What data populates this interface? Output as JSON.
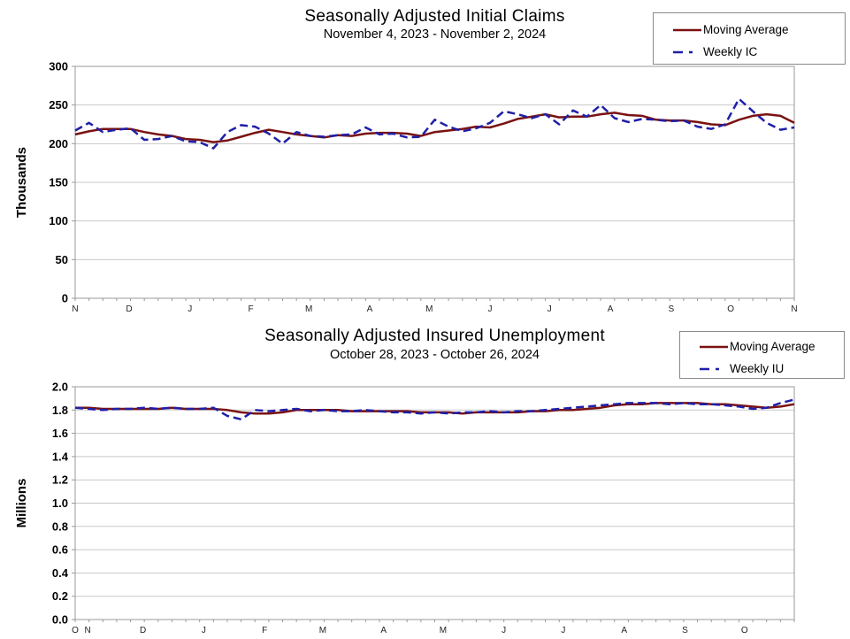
{
  "chart_data": [
    {
      "type": "line",
      "title": "Seasonally Adjusted Initial Claims",
      "subtitle": "November 4, 2023 - November 2, 2024",
      "ylabel": "Thousands",
      "xlabel": "",
      "ylim": [
        0,
        300
      ],
      "yticklabels": [
        "0",
        "50",
        "100",
        "150",
        "200",
        "250",
        "300"
      ],
      "weeks": 52,
      "grid": "horizontal",
      "grid_color": "#c8c8c8",
      "frame_color": "#999999",
      "legend_position": "top-right",
      "xticks": [
        {
          "label": "N",
          "week": 0
        },
        {
          "label": "D",
          "week": 3.9
        },
        {
          "label": "J",
          "week": 8.3
        },
        {
          "label": "F",
          "week": 12.7
        },
        {
          "label": "M",
          "week": 16.9
        },
        {
          "label": "A",
          "week": 21.3
        },
        {
          "label": "M",
          "week": 25.6
        },
        {
          "label": "J",
          "week": 30
        },
        {
          "label": "J",
          "week": 34.3
        },
        {
          "label": "A",
          "week": 38.7
        },
        {
          "label": "S",
          "week": 43.1
        },
        {
          "label": "O",
          "week": 47.4
        },
        {
          "label": "N",
          "week": 52
        }
      ],
      "series": [
        {
          "name": "Moving Average",
          "style": "solid",
          "color": "#7a1212",
          "values": [
            212,
            216,
            219,
            219,
            219,
            215,
            212,
            210,
            206,
            205,
            202,
            204,
            209,
            214,
            218,
            215,
            212,
            210,
            208,
            211,
            210,
            213,
            214,
            214,
            213,
            210,
            215,
            217,
            219,
            222,
            221,
            226,
            232,
            235,
            238,
            234,
            235,
            235,
            238,
            240,
            237,
            236,
            231,
            230,
            230,
            228,
            225,
            224,
            231,
            236,
            238,
            236,
            227
          ]
        },
        {
          "name": "Weekly IC",
          "style": "dashed",
          "color": "#1f1fa8",
          "values": [
            217,
            227,
            215,
            218,
            220,
            205,
            206,
            210,
            203,
            202,
            194,
            215,
            224,
            222,
            213,
            200,
            215,
            210,
            209,
            211,
            212,
            221,
            212,
            213,
            208,
            209,
            231,
            222,
            216,
            220,
            227,
            242,
            238,
            233,
            238,
            225,
            243,
            235,
            250,
            233,
            228,
            232,
            231,
            229,
            230,
            222,
            219,
            225,
            258,
            242,
            227,
            218,
            221
          ]
        }
      ]
    },
    {
      "type": "line",
      "title": "Seasonally Adjusted Insured Unemployment",
      "subtitle": "October 28, 2023 - October 26, 2024",
      "ylabel": "Millions",
      "xlabel": "",
      "ylim": [
        0,
        2.0
      ],
      "yticklabels": [
        "0.0",
        "0.2",
        "0.4",
        "0.6",
        "0.8",
        "1.0",
        "1.2",
        "1.4",
        "1.6",
        "1.8",
        "2.0"
      ],
      "weeks": 52,
      "grid": "horizontal",
      "grid_color": "#c8c8c8",
      "frame_color": "#999999",
      "legend_position": "top-right",
      "xticks": [
        {
          "label": "O",
          "week": 0
        },
        {
          "label": "N",
          "week": 0.9
        },
        {
          "label": "D",
          "week": 4.9
        },
        {
          "label": "J",
          "week": 9.3
        },
        {
          "label": "F",
          "week": 13.7
        },
        {
          "label": "M",
          "week": 17.9
        },
        {
          "label": "A",
          "week": 22.3
        },
        {
          "label": "M",
          "week": 26.6
        },
        {
          "label": "J",
          "week": 31
        },
        {
          "label": "J",
          "week": 35.3
        },
        {
          "label": "A",
          "week": 39.7
        },
        {
          "label": "S",
          "week": 44.1
        },
        {
          "label": "O",
          "week": 48.4
        }
      ],
      "series": [
        {
          "name": "Moving Average",
          "style": "solid",
          "color": "#7a1212",
          "values": [
            1.82,
            1.82,
            1.81,
            1.81,
            1.81,
            1.81,
            1.81,
            1.82,
            1.81,
            1.81,
            1.81,
            1.8,
            1.78,
            1.77,
            1.77,
            1.78,
            1.8,
            1.8,
            1.8,
            1.8,
            1.79,
            1.79,
            1.79,
            1.79,
            1.79,
            1.78,
            1.78,
            1.78,
            1.77,
            1.78,
            1.78,
            1.78,
            1.78,
            1.79,
            1.79,
            1.8,
            1.8,
            1.81,
            1.82,
            1.84,
            1.85,
            1.85,
            1.86,
            1.86,
            1.86,
            1.86,
            1.85,
            1.85,
            1.84,
            1.83,
            1.82,
            1.83,
            1.85
          ]
        },
        {
          "name": "Weekly IU",
          "style": "dashed",
          "color": "#1f1fa8",
          "values": [
            1.82,
            1.81,
            1.8,
            1.81,
            1.81,
            1.82,
            1.81,
            1.82,
            1.81,
            1.81,
            1.82,
            1.75,
            1.72,
            1.8,
            1.79,
            1.8,
            1.81,
            1.79,
            1.8,
            1.79,
            1.79,
            1.8,
            1.79,
            1.78,
            1.78,
            1.77,
            1.78,
            1.77,
            1.78,
            1.78,
            1.79,
            1.78,
            1.79,
            1.79,
            1.8,
            1.81,
            1.82,
            1.83,
            1.84,
            1.85,
            1.86,
            1.86,
            1.86,
            1.85,
            1.86,
            1.85,
            1.85,
            1.84,
            1.83,
            1.81,
            1.82,
            1.86,
            1.89
          ]
        }
      ]
    }
  ]
}
